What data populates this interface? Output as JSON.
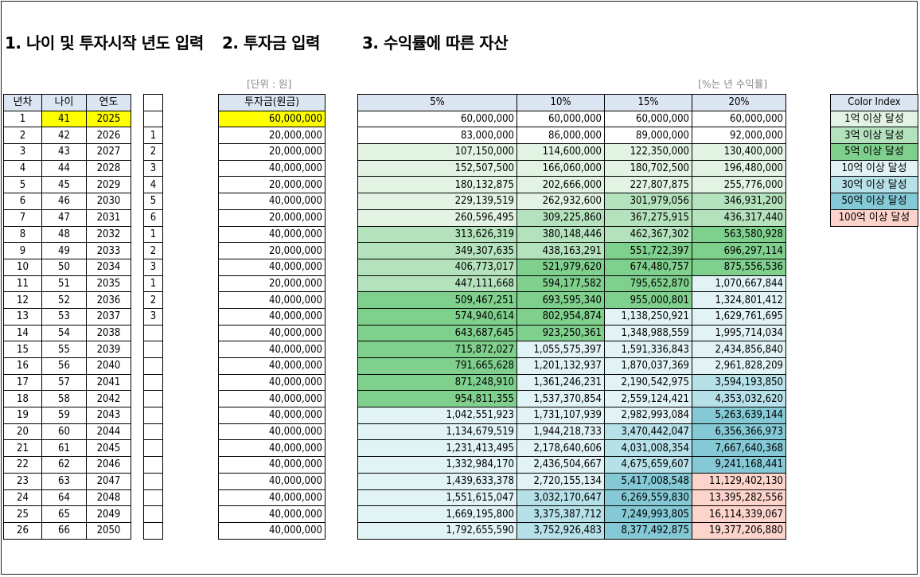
{
  "headings": {
    "h1": "1. 나이 및 투자시작 년도 입력",
    "h2": "2. 투자금 입력",
    "h3": "3. 수익률에 따른 자산"
  },
  "notes": {
    "unit": "[단위 : 원]",
    "rate": "[%는 년 수익률]"
  },
  "table_age": {
    "headers": [
      "년차",
      "나이",
      "연도"
    ],
    "rows": [
      [
        "1",
        "41",
        "2025"
      ],
      [
        "2",
        "42",
        "2026"
      ],
      [
        "3",
        "43",
        "2027"
      ],
      [
        "4",
        "44",
        "2028"
      ],
      [
        "5",
        "45",
        "2029"
      ],
      [
        "6",
        "46",
        "2030"
      ],
      [
        "7",
        "47",
        "2031"
      ],
      [
        "8",
        "48",
        "2032"
      ],
      [
        "9",
        "49",
        "2033"
      ],
      [
        "10",
        "50",
        "2034"
      ],
      [
        "11",
        "51",
        "2035"
      ],
      [
        "12",
        "52",
        "2036"
      ],
      [
        "13",
        "53",
        "2037"
      ],
      [
        "14",
        "54",
        "2038"
      ],
      [
        "15",
        "55",
        "2039"
      ],
      [
        "16",
        "56",
        "2040"
      ],
      [
        "17",
        "57",
        "2041"
      ],
      [
        "18",
        "58",
        "2042"
      ],
      [
        "19",
        "59",
        "2043"
      ],
      [
        "20",
        "60",
        "2044"
      ],
      [
        "21",
        "61",
        "2045"
      ],
      [
        "22",
        "62",
        "2046"
      ],
      [
        "23",
        "63",
        "2047"
      ],
      [
        "24",
        "64",
        "2048"
      ],
      [
        "25",
        "65",
        "2049"
      ],
      [
        "26",
        "66",
        "2050"
      ]
    ]
  },
  "side_numbers": [
    "",
    "1",
    "2",
    "3",
    "4",
    "5",
    "6",
    "1",
    "2",
    "3",
    "1",
    "2",
    "3",
    "",
    "",
    "",
    "",
    "",
    "",
    "",
    "",
    "",
    "",
    "",
    "",
    ""
  ],
  "table_invest": {
    "header": "투자금(원금)",
    "values": [
      "60,000,000",
      "20,000,000",
      "20,000,000",
      "40,000,000",
      "20,000,000",
      "40,000,000",
      "20,000,000",
      "40,000,000",
      "20,000,000",
      "40,000,000",
      "20,000,000",
      "40,000,000",
      "40,000,000",
      "40,000,000",
      "40,000,000",
      "40,000,000",
      "40,000,000",
      "40,000,000",
      "40,000,000",
      "40,000,000",
      "40,000,000",
      "40,000,000",
      "40,000,000",
      "40,000,000",
      "40,000,000",
      "40,000,000"
    ]
  },
  "table_returns": {
    "headers": [
      "5%",
      "10%",
      "15%",
      "20%"
    ],
    "rows": [
      [
        "60,000,000",
        "60,000,000",
        "60,000,000",
        "60,000,000"
      ],
      [
        "83,000,000",
        "86,000,000",
        "89,000,000",
        "92,000,000"
      ],
      [
        "107,150,000",
        "114,600,000",
        "122,350,000",
        "130,400,000"
      ],
      [
        "152,507,500",
        "166,060,000",
        "180,702,500",
        "196,480,000"
      ],
      [
        "180,132,875",
        "202,666,000",
        "227,807,875",
        "255,776,000"
      ],
      [
        "229,139,519",
        "262,932,600",
        "301,979,056",
        "346,931,200"
      ],
      [
        "260,596,495",
        "309,225,860",
        "367,275,915",
        "436,317,440"
      ],
      [
        "313,626,319",
        "380,148,446",
        "462,367,302",
        "563,580,928"
      ],
      [
        "349,307,635",
        "438,163,291",
        "551,722,397",
        "696,297,114"
      ],
      [
        "406,773,017",
        "521,979,620",
        "674,480,757",
        "875,556,536"
      ],
      [
        "447,111,668",
        "594,177,582",
        "795,652,870",
        "1,070,667,844"
      ],
      [
        "509,467,251",
        "693,595,340",
        "955,000,801",
        "1,324,801,412"
      ],
      [
        "574,940,614",
        "802,954,874",
        "1,138,250,921",
        "1,629,761,695"
      ],
      [
        "643,687,645",
        "923,250,361",
        "1,348,988,559",
        "1,995,714,034"
      ],
      [
        "715,872,027",
        "1,055,575,397",
        "1,591,336,843",
        "2,434,856,840"
      ],
      [
        "791,665,628",
        "1,201,132,937",
        "1,870,037,369",
        "2,961,828,209"
      ],
      [
        "871,248,910",
        "1,361,246,231",
        "2,190,542,975",
        "3,594,193,850"
      ],
      [
        "954,811,355",
        "1,537,370,854",
        "2,559,124,421",
        "4,353,032,620"
      ],
      [
        "1,042,551,923",
        "1,731,107,939",
        "2,982,993,084",
        "5,263,639,144"
      ],
      [
        "1,134,679,519",
        "1,944,218,733",
        "3,470,442,047",
        "6,356,366,973"
      ],
      [
        "1,231,413,495",
        "2,178,640,606",
        "4,031,008,354",
        "7,667,640,368"
      ],
      [
        "1,332,984,170",
        "2,436,504,667",
        "4,675,659,607",
        "9,241,168,441"
      ],
      [
        "1,439,633,378",
        "2,720,155,134",
        "5,417,008,548",
        "11,129,402,130"
      ],
      [
        "1,551,615,047",
        "3,032,170,647",
        "6,269,559,830",
        "13,395,282,556"
      ],
      [
        "1,669,195,800",
        "3,375,387,712",
        "7,249,993,805",
        "16,114,339,067"
      ],
      [
        "1,792,655,590",
        "3,752,926,483",
        "8,377,492,875",
        "19,377,206,880"
      ]
    ]
  },
  "legend": {
    "title": "Color Index",
    "items": [
      {
        "label": "1억 이상 달성",
        "color": "#e2f3e4"
      },
      {
        "label": "3억 이상 달성",
        "color": "#b4e2bd"
      },
      {
        "label": "5억 이상 달성",
        "color": "#7fcf8d"
      },
      {
        "label": "10억 이상 달성",
        "color": "#e1f3f5"
      },
      {
        "label": "30억 이상 달성",
        "color": "#b6e1e8"
      },
      {
        "label": "50억 이상 달성",
        "color": "#84c9d5"
      },
      {
        "label": "100억 이상 달성",
        "color": "#fcd4cc"
      }
    ]
  },
  "colors": {
    "header_bg": "#dce6f2",
    "highlight": "#ffff00"
  }
}
